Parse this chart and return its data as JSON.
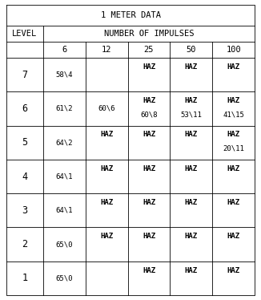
{
  "title": "1 METER DATA",
  "impulse_labels": [
    "6",
    "12",
    "25",
    "50",
    "100"
  ],
  "rows": [
    {
      "level": "7",
      "cells": [
        {
          "top": "",
          "bottom": "58\\4"
        },
        {
          "top": "",
          "bottom": ""
        },
        {
          "top": "HAZ",
          "bottom": ""
        },
        {
          "top": "HAZ",
          "bottom": ""
        },
        {
          "top": "HAZ",
          "bottom": ""
        }
      ]
    },
    {
      "level": "6",
      "cells": [
        {
          "top": "",
          "bottom": "61\\2"
        },
        {
          "top": "",
          "bottom": "60\\6"
        },
        {
          "top": "HAZ",
          "bottom": "60\\8"
        },
        {
          "top": "HAZ",
          "bottom": "53\\11"
        },
        {
          "top": "HAZ",
          "bottom": "41\\15"
        }
      ]
    },
    {
      "level": "5",
      "cells": [
        {
          "top": "",
          "bottom": "64\\2"
        },
        {
          "top": "HAZ",
          "bottom": ""
        },
        {
          "top": "HAZ",
          "bottom": ""
        },
        {
          "top": "HAZ",
          "bottom": ""
        },
        {
          "top": "HAZ",
          "bottom": "20\\11"
        }
      ]
    },
    {
      "level": "4",
      "cells": [
        {
          "top": "",
          "bottom": "64\\1"
        },
        {
          "top": "HAZ",
          "bottom": ""
        },
        {
          "top": "HAZ",
          "bottom": ""
        },
        {
          "top": "HAZ",
          "bottom": ""
        },
        {
          "top": "HAZ",
          "bottom": ""
        }
      ]
    },
    {
      "level": "3",
      "cells": [
        {
          "top": "",
          "bottom": "64\\1"
        },
        {
          "top": "HAZ",
          "bottom": ""
        },
        {
          "top": "HAZ",
          "bottom": ""
        },
        {
          "top": "HAZ",
          "bottom": ""
        },
        {
          "top": "HAZ",
          "bottom": ""
        }
      ]
    },
    {
      "level": "2",
      "cells": [
        {
          "top": "",
          "bottom": "65\\0"
        },
        {
          "top": "HAZ",
          "bottom": ""
        },
        {
          "top": "HAZ",
          "bottom": ""
        },
        {
          "top": "HAZ",
          "bottom": ""
        },
        {
          "top": "HAZ",
          "bottom": ""
        }
      ]
    },
    {
      "level": "1",
      "cells": [
        {
          "top": "",
          "bottom": "65\\0"
        },
        {
          "top": "",
          "bottom": ""
        },
        {
          "top": "HAZ",
          "bottom": ""
        },
        {
          "top": "HAZ",
          "bottom": ""
        },
        {
          "top": "HAZ",
          "bottom": ""
        }
      ]
    }
  ],
  "bg_color": "#ffffff",
  "line_color": "#000000",
  "text_color": "#000000",
  "title_fontsize": 7.5,
  "header_fontsize": 7.5,
  "data_fontsize": 7.5,
  "haz_fontsize": 6.5,
  "lw": 0.6
}
